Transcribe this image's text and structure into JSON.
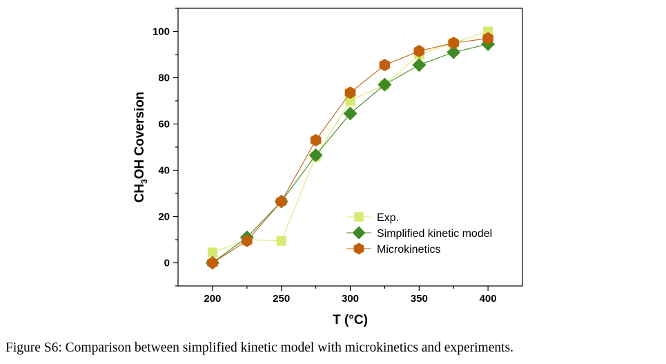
{
  "chart_data": {
    "type": "line",
    "xlabel": "T (°C)",
    "ylabel": {
      "prefix": "CH",
      "sub": "3",
      "suffix": "OH Coversion"
    },
    "xlim": [
      175,
      425
    ],
    "ylim": [
      -10,
      110
    ],
    "xticks": [
      200,
      250,
      300,
      350,
      400
    ],
    "yticks": [
      0,
      20,
      40,
      60,
      80,
      100
    ],
    "grid": false,
    "legend_position": "bottom-right",
    "series": [
      {
        "name": "Exp.",
        "marker": "square",
        "color": "#d9e86f",
        "x": [
          200,
          225,
          250,
          275,
          300,
          325,
          350,
          375,
          400
        ],
        "y": [
          4.5,
          10,
          9.5,
          46,
          70,
          77,
          90,
          95,
          100
        ]
      },
      {
        "name": "Simplified kinetic model",
        "marker": "diamond",
        "color": "#3f8a25",
        "x": [
          200,
          225,
          250,
          275,
          300,
          325,
          350,
          375,
          400
        ],
        "y": [
          0,
          11,
          26.5,
          46.5,
          64.5,
          77,
          85.5,
          91,
          94.5
        ]
      },
      {
        "name": "Microkinetics",
        "marker": "hexagon",
        "color": "#c0600c",
        "x": [
          200,
          225,
          250,
          275,
          300,
          325,
          350,
          375,
          400
        ],
        "y": [
          0,
          9.5,
          26.5,
          53,
          73.5,
          85.5,
          91.5,
          95,
          97
        ]
      }
    ]
  },
  "caption": "Figure S6: Comparison between simplified kinetic model with microkinetics and experiments."
}
